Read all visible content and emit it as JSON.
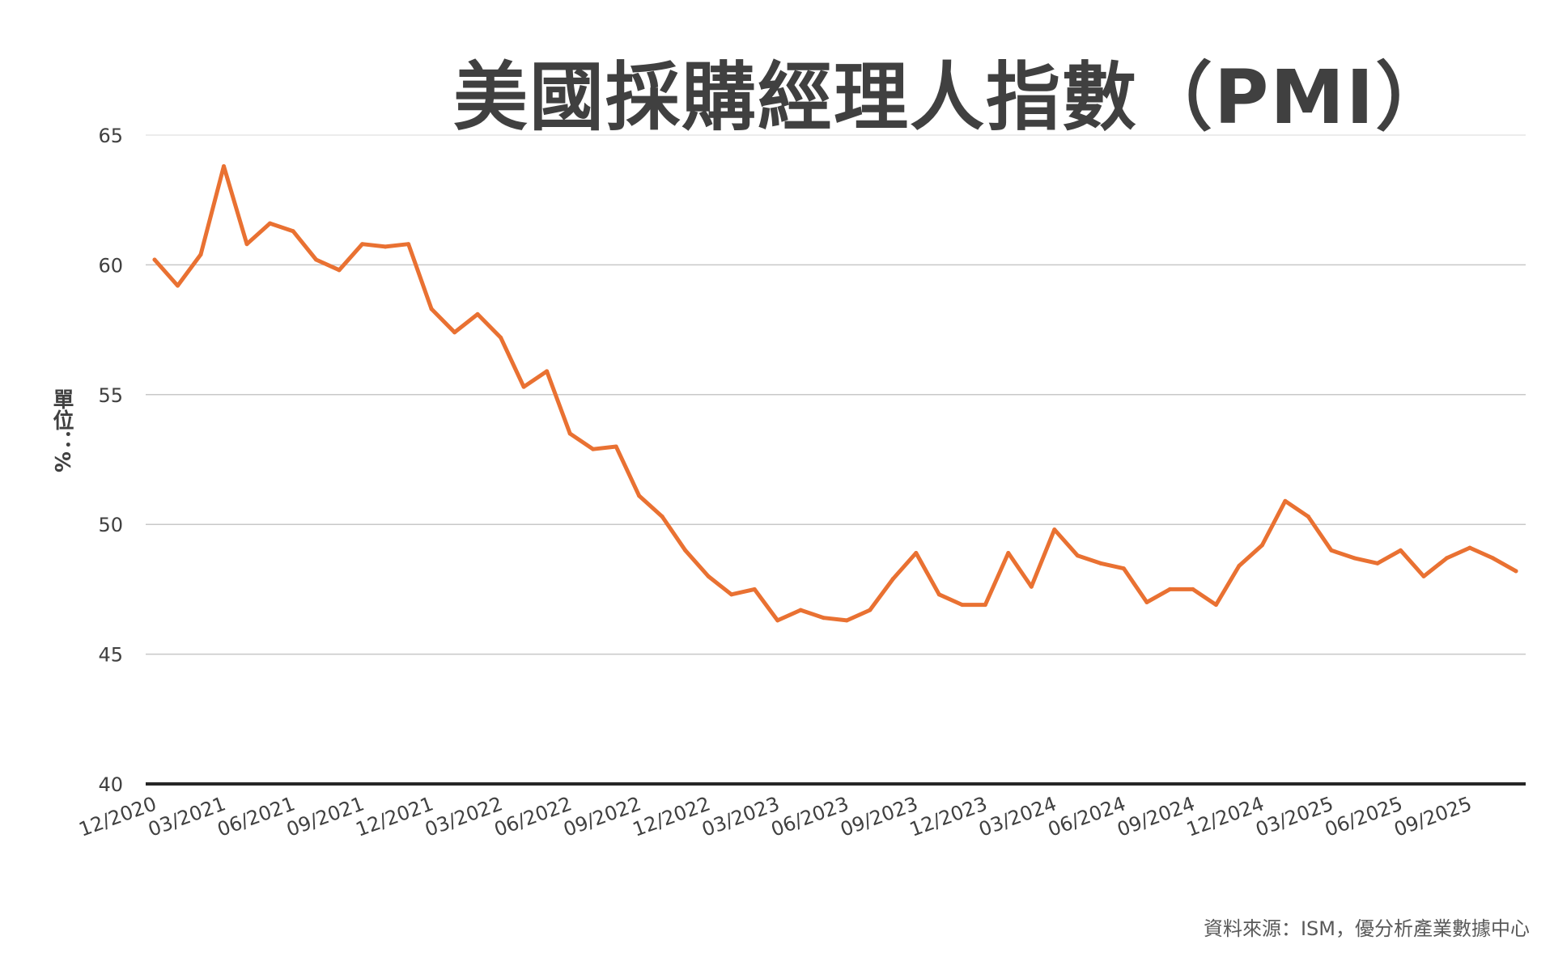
{
  "chart_data": {
    "type": "line",
    "title": "美國採購經理人指數（PMI）",
    "ylabel": "單位：%",
    "xlabel": "",
    "ylim": [
      40,
      65
    ],
    "yticks": [
      40,
      45,
      50,
      55,
      60,
      65
    ],
    "grid": true,
    "legend": "none",
    "line_color": "#E97132",
    "x_tick_labels": [
      "12/2020",
      "03/2021",
      "06/2021",
      "09/2021",
      "12/2021",
      "03/2022",
      "06/2022",
      "09/2022",
      "12/2022",
      "03/2023",
      "06/2023",
      "09/2023",
      "12/2023",
      "03/2024",
      "06/2024",
      "09/2024",
      "12/2024",
      "03/2025",
      "06/2025",
      "09/2025"
    ],
    "x": [
      "12/2020",
      "01/2021",
      "02/2021",
      "03/2021",
      "04/2021",
      "05/2021",
      "06/2021",
      "07/2021",
      "08/2021",
      "09/2021",
      "10/2021",
      "11/2021",
      "12/2021",
      "01/2022",
      "02/2022",
      "03/2022",
      "04/2022",
      "05/2022",
      "06/2022",
      "07/2022",
      "08/2022",
      "09/2022",
      "10/2022",
      "11/2022",
      "12/2022",
      "01/2023",
      "02/2023",
      "03/2023",
      "04/2023",
      "05/2023",
      "06/2023",
      "07/2023",
      "08/2023",
      "09/2023",
      "10/2023",
      "11/2023",
      "12/2023",
      "01/2024",
      "02/2024",
      "03/2024",
      "04/2024",
      "05/2024",
      "06/2024",
      "07/2024",
      "08/2024",
      "09/2024",
      "10/2024",
      "11/2024",
      "12/2024",
      "01/2025",
      "02/2025",
      "03/2025",
      "04/2025",
      "05/2025",
      "06/2025",
      "07/2025",
      "08/2025",
      "09/2025",
      "10/2025",
      "11/2025"
    ],
    "series": [
      {
        "values": [
          60.2,
          59.2,
          60.4,
          63.8,
          60.8,
          61.6,
          61.3,
          60.2,
          59.8,
          60.8,
          60.7,
          60.8,
          58.3,
          57.4,
          58.1,
          57.2,
          55.3,
          55.9,
          53.5,
          52.9,
          53.0,
          51.1,
          50.3,
          49.0,
          48.0,
          47.3,
          47.5,
          46.3,
          46.7,
          46.4,
          46.3,
          46.7,
          47.9,
          48.9,
          47.3,
          46.9,
          46.9,
          48.9,
          47.6,
          49.8,
          48.8,
          48.5,
          48.3,
          47.0,
          47.5,
          47.5,
          46.9,
          48.4,
          49.2,
          50.9,
          50.3,
          49.0,
          48.7,
          48.5,
          49.0,
          48.0,
          48.7,
          49.1,
          48.7,
          48.2
        ]
      }
    ]
  },
  "source_note": "資料來源：ISM，優分析產業數據中心"
}
